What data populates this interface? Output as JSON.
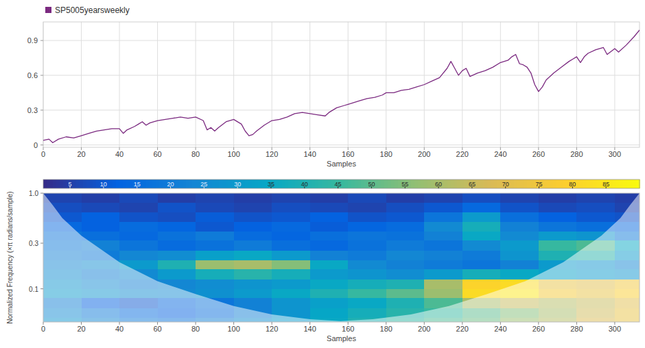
{
  "chart_data": [
    {
      "type": "line",
      "x_label": "Samples",
      "x": [
        0,
        3,
        5,
        8,
        12,
        16,
        20,
        24,
        28,
        32,
        36,
        40,
        42,
        44,
        48,
        50,
        52,
        54,
        56,
        60,
        64,
        68,
        72,
        76,
        80,
        84,
        86,
        88,
        90,
        92,
        96,
        100,
        104,
        106,
        108,
        110,
        112,
        116,
        120,
        124,
        128,
        132,
        136,
        140,
        144,
        148,
        150,
        154,
        158,
        162,
        166,
        170,
        174,
        178,
        180,
        184,
        188,
        192,
        196,
        200,
        204,
        208,
        212,
        214,
        216,
        218,
        220,
        222,
        224,
        228,
        232,
        236,
        240,
        244,
        246,
        248,
        250,
        252,
        254,
        256,
        258,
        260,
        262,
        264,
        268,
        272,
        276,
        278,
        280,
        282,
        284,
        286,
        290,
        294,
        296,
        300,
        302,
        306,
        310,
        313
      ],
      "series": [
        {
          "name": "SP5005yearsweekly",
          "color": "#7b2a80",
          "values": [
            0.04,
            0.05,
            0.02,
            0.05,
            0.07,
            0.06,
            0.08,
            0.1,
            0.12,
            0.13,
            0.14,
            0.14,
            0.1,
            0.13,
            0.16,
            0.18,
            0.2,
            0.17,
            0.19,
            0.21,
            0.22,
            0.23,
            0.24,
            0.23,
            0.24,
            0.21,
            0.13,
            0.15,
            0.12,
            0.15,
            0.2,
            0.22,
            0.18,
            0.12,
            0.08,
            0.09,
            0.12,
            0.17,
            0.21,
            0.22,
            0.24,
            0.27,
            0.28,
            0.27,
            0.26,
            0.25,
            0.28,
            0.32,
            0.34,
            0.36,
            0.38,
            0.4,
            0.41,
            0.43,
            0.45,
            0.45,
            0.47,
            0.48,
            0.5,
            0.52,
            0.55,
            0.58,
            0.66,
            0.72,
            0.66,
            0.6,
            0.64,
            0.66,
            0.59,
            0.62,
            0.64,
            0.67,
            0.71,
            0.73,
            0.76,
            0.78,
            0.7,
            0.69,
            0.67,
            0.62,
            0.52,
            0.46,
            0.5,
            0.56,
            0.62,
            0.67,
            0.72,
            0.74,
            0.76,
            0.71,
            0.76,
            0.79,
            0.82,
            0.84,
            0.78,
            0.83,
            0.8,
            0.86,
            0.93,
            0.99
          ]
        }
      ],
      "xlim": [
        0,
        313
      ],
      "xticks": [
        0,
        20,
        40,
        60,
        80,
        100,
        120,
        140,
        160,
        180,
        200,
        220,
        240,
        260,
        280,
        300
      ],
      "ylim": [
        -0.02,
        1.06
      ],
      "yticks": [
        0,
        0.3,
        0.6,
        0.9
      ],
      "grid": true,
      "legend": "top-left"
    },
    {
      "type": "heatmap",
      "x_label": "Samples",
      "y_label": "Normalized Frequency (×π radians/sample)",
      "log": "y",
      "xlim": [
        0,
        313
      ],
      "xticks": [
        0,
        20,
        40,
        60,
        80,
        100,
        120,
        140,
        160,
        180,
        200,
        220,
        240,
        260,
        280,
        300
      ],
      "ylim": [
        0.045,
        1
      ],
      "yticks": [
        {
          "value": 1,
          "label": "1.0"
        },
        0.3,
        0.1
      ],
      "x_edges": [
        0,
        20,
        40,
        60,
        80,
        100,
        120,
        140,
        160,
        180,
        200,
        220,
        240,
        260,
        280,
        300,
        313
      ],
      "y_edges": [
        1,
        0.8,
        0.63,
        0.5,
        0.4,
        0.32,
        0.25,
        0.2,
        0.16,
        0.125,
        0.1,
        0.08,
        0.063,
        0.05,
        0.045
      ],
      "cells": [
        [
          6,
          5,
          7,
          5,
          6,
          5,
          6,
          5,
          7,
          5,
          6,
          8,
          6,
          5,
          6,
          5
        ],
        [
          8,
          7,
          6,
          9,
          7,
          6,
          8,
          7,
          6,
          8,
          10,
          14,
          9,
          7,
          8,
          6
        ],
        [
          10,
          12,
          9,
          8,
          11,
          9,
          10,
          12,
          9,
          10,
          18,
          30,
          16,
          12,
          10,
          9
        ],
        [
          14,
          12,
          15,
          13,
          10,
          12,
          14,
          11,
          13,
          15,
          25,
          38,
          22,
          18,
          16,
          14
        ],
        [
          18,
          16,
          14,
          17,
          20,
          15,
          13,
          16,
          18,
          17,
          22,
          35,
          25,
          30,
          28,
          20
        ],
        [
          20,
          22,
          18,
          15,
          17,
          20,
          16,
          14,
          17,
          20,
          18,
          25,
          30,
          45,
          48,
          35
        ],
        [
          22,
          20,
          24,
          26,
          32,
          35,
          30,
          22,
          20,
          24,
          22,
          20,
          28,
          40,
          42,
          30
        ],
        [
          24,
          26,
          30,
          40,
          58,
          60,
          55,
          35,
          25,
          22,
          20,
          18,
          22,
          30,
          28,
          24
        ],
        [
          26,
          22,
          25,
          30,
          38,
          42,
          38,
          30,
          28,
          26,
          30,
          38,
          35,
          32,
          30,
          28
        ],
        [
          28,
          25,
          22,
          24,
          26,
          28,
          30,
          35,
          38,
          40,
          60,
          80,
          82,
          72,
          70,
          75
        ],
        [
          30,
          28,
          26,
          25,
          27,
          30,
          35,
          40,
          45,
          50,
          58,
          82,
          85,
          76,
          72,
          78
        ],
        [
          22,
          12,
          10,
          14,
          18,
          22,
          28,
          32,
          35,
          40,
          48,
          60,
          65,
          62,
          65,
          70
        ],
        [
          25,
          20,
          15,
          12,
          16,
          22,
          28,
          34,
          38,
          42,
          45,
          50,
          55,
          60,
          66,
          72
        ],
        [
          28,
          24,
          20,
          18,
          22,
          26,
          30,
          35,
          40,
          44,
          48,
          52,
          58,
          62,
          68,
          72
        ]
      ],
      "colorbar": {
        "range": [
          1,
          90
        ],
        "ticks": [
          5,
          10,
          15,
          20,
          25,
          30,
          35,
          40,
          45,
          50,
          55,
          60,
          65,
          70,
          75,
          80,
          85
        ]
      },
      "coi": {
        "x": [
          0,
          5,
          10,
          20,
          40,
          60,
          80,
          100,
          120,
          140,
          156,
          173,
          193,
          213,
          233,
          253,
          273,
          293,
          303,
          308,
          313
        ],
        "frequency": [
          1,
          0.75,
          0.55,
          0.36,
          0.19,
          0.12,
          0.088,
          0.066,
          0.054,
          0.048,
          0.046,
          0.048,
          0.054,
          0.066,
          0.088,
          0.12,
          0.19,
          0.36,
          0.55,
          0.75,
          1
        ]
      }
    }
  ]
}
